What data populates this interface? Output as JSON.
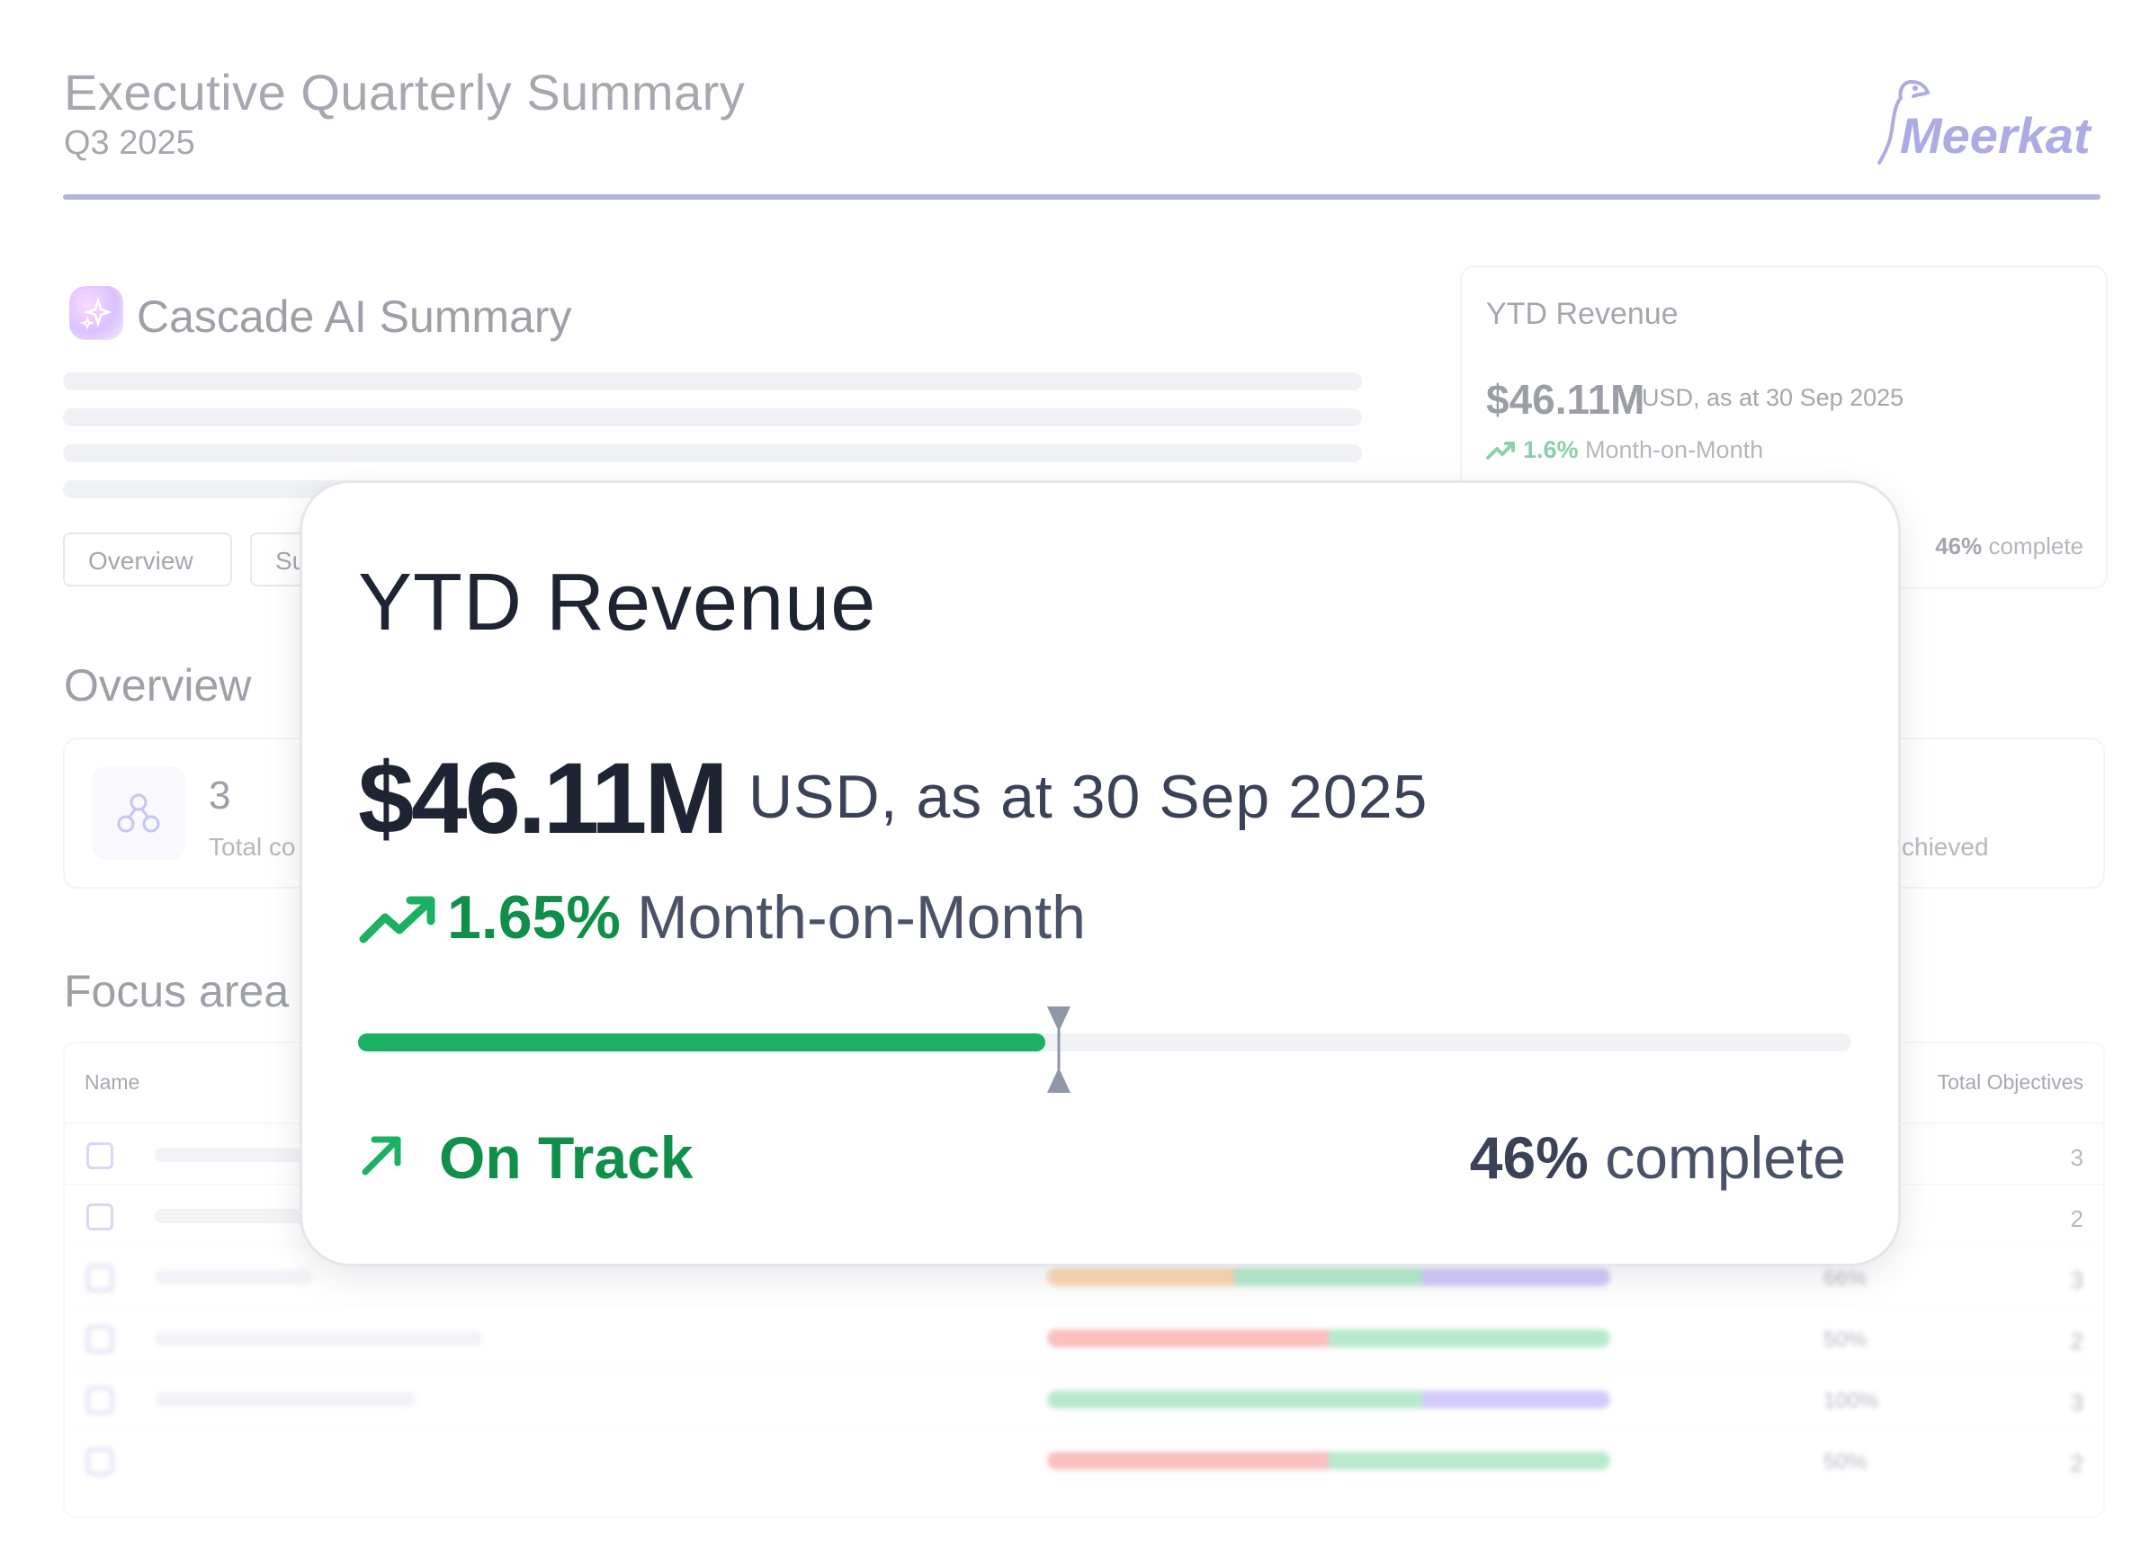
{
  "header": {
    "title": "Executive Quarterly Summary",
    "subtitle": "Q3 2025",
    "logo_text": "Meerkat"
  },
  "ai_summary": {
    "title": "Cascade AI Summary"
  },
  "tabs": [
    {
      "label": "Overview"
    },
    {
      "label": "Su"
    }
  ],
  "overview": {
    "heading": "Overview",
    "stat_left": {
      "value": "3",
      "label": "Total co"
    },
    "stat_right": {
      "label": "chieved"
    }
  },
  "focus": {
    "heading": "Focus area",
    "col_name": "Name",
    "col_total": "Total Objectives",
    "rows": [
      {
        "total": "3"
      },
      {
        "total": "2"
      },
      {
        "pct": "66%",
        "total": "3"
      },
      {
        "pct": "50%",
        "total": "2"
      },
      {
        "pct": "100%",
        "total": "3"
      },
      {
        "pct": "50%",
        "total": "2"
      }
    ]
  },
  "ytd_small": {
    "title": "YTD Revenue",
    "value": "$46.11M",
    "unit": "USD, as at 30 Sep 2025",
    "change": "1.6%",
    "change_label": "Month-on-Month",
    "complete_pct": "46%",
    "complete_label": "complete"
  },
  "ytd_card": {
    "title": "YTD Revenue",
    "value": "$46.11M",
    "unit": "USD, as at 30 Sep 2025",
    "change": "1.65%",
    "change_label": "Month-on-Month",
    "progress_fraction": 0.46,
    "marker_fraction": 0.4695,
    "status": "On Track",
    "complete_pct": "46%",
    "complete_label": "complete",
    "icon_trend": "trending-up-icon",
    "icon_status": "arrow-up-right-icon"
  },
  "colors": {
    "accent": "#6a66c4",
    "success": "#1bb062",
    "success_text": "#0f8f4a",
    "bar_orange": "#f6b26b",
    "bar_green": "#6fd59a",
    "bar_purple": "#a996f5",
    "bar_red": "#f57f7f"
  }
}
